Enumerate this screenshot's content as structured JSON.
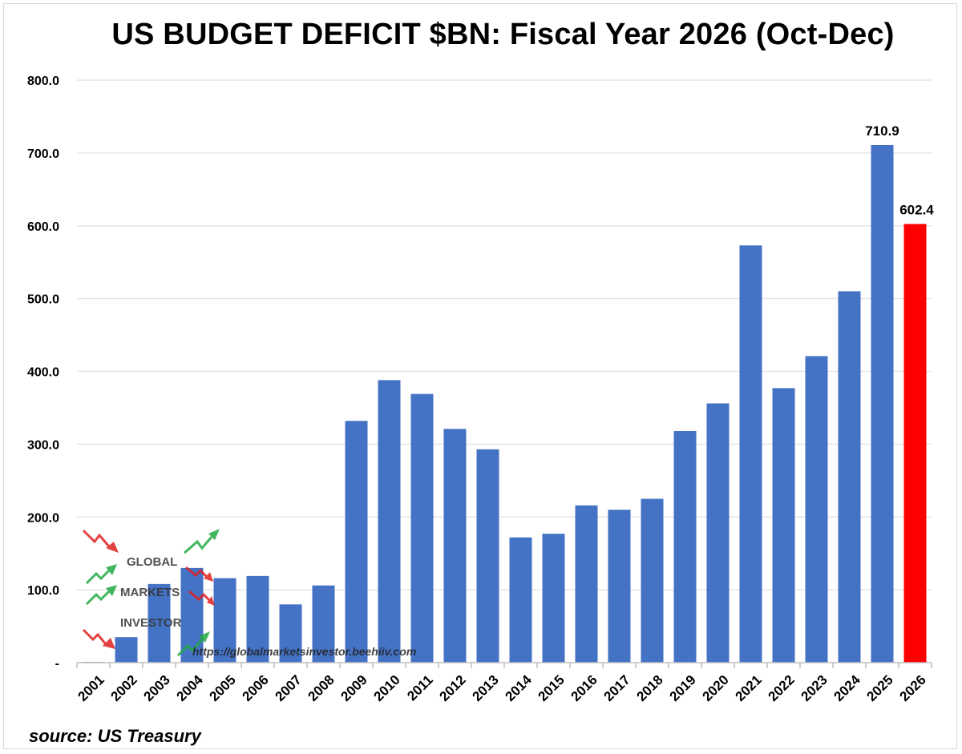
{
  "chart_data": {
    "type": "bar",
    "title": "US BUDGET DEFICIT $BN: Fiscal Year 2026 (Oct-Dec)",
    "xlabel": "",
    "ylabel": "",
    "categories": [
      "2001",
      "2002",
      "2003",
      "2004",
      "2005",
      "2006",
      "2007",
      "2008",
      "2009",
      "2010",
      "2011",
      "2012",
      "2013",
      "2014",
      "2015",
      "2016",
      "2017",
      "2018",
      "2019",
      "2020",
      "2021",
      "2022",
      "2023",
      "2024",
      "2025",
      "2026"
    ],
    "values": [
      1,
      35,
      108,
      130,
      116,
      119,
      80,
      106,
      332,
      388,
      369,
      321,
      293,
      172,
      177,
      216,
      210,
      225,
      318,
      356,
      573,
      377,
      421,
      510,
      710.9,
      602.4
    ],
    "ylim": [
      0,
      800
    ],
    "yticks": [
      "-",
      "100.0",
      "200.0",
      "300.0",
      "400.0",
      "500.0",
      "600.0",
      "700.0",
      "800.0"
    ],
    "data_labels": [
      {
        "category": "2025",
        "text": "710.9"
      },
      {
        "category": "2026",
        "text": "602.4"
      }
    ],
    "grid": true,
    "legend": "none",
    "colors": {
      "default_bar": "#4472C4",
      "highlight_bar": "#FF0000",
      "highlight_category": "2026",
      "grid": "#e6e6e6",
      "axis": "#bfbfbf"
    },
    "source": "source: US Treasury"
  },
  "watermark": {
    "lines": [
      "GLOBAL",
      "MARKETS",
      "INVESTOR"
    ],
    "url": "https://globalmarketsinvestor.beehiiv.com",
    "arrow_colors": {
      "up": "#22aa44",
      "down": "#e02020"
    }
  }
}
